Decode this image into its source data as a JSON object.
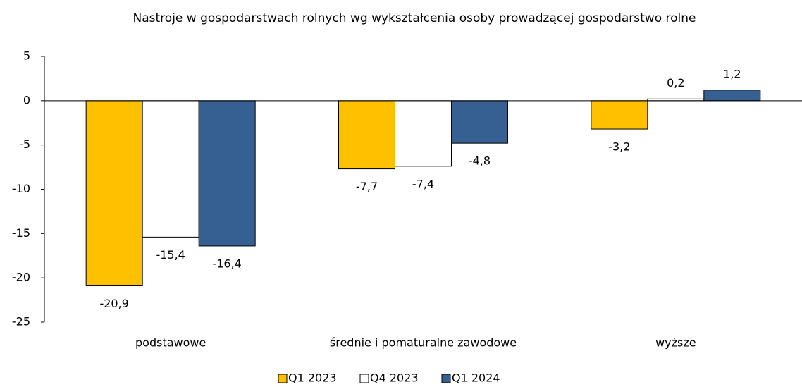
{
  "chart_data": {
    "type": "bar",
    "title": "Nastroje w gospodarstwach rolnych wg wykształcenia osoby prowadzącej gospodarstwo rolne",
    "categories": [
      "podstawowe",
      "średnie i pomaturalne zawodowe",
      "wyższe"
    ],
    "series": [
      {
        "name": "Q1 2023",
        "color": "#ffc000",
        "values": [
          -20.9,
          -7.7,
          -3.2
        ],
        "value_labels": [
          "-20,9",
          "-7,7",
          "-3,2"
        ]
      },
      {
        "name": "Q4 2023",
        "color": "#ffffff",
        "values": [
          -15.4,
          -7.4,
          0.2
        ],
        "value_labels": [
          "-15,4",
          "-7,4",
          "0,2"
        ]
      },
      {
        "name": "Q1 2024",
        "color": "#366092",
        "values": [
          -16.4,
          -4.8,
          1.2
        ],
        "value_labels": [
          "-16,4",
          "-4,8",
          "1,2"
        ]
      }
    ],
    "ylim": [
      -25,
      5
    ],
    "yticks": [
      -25,
      -20,
      -15,
      -10,
      -5,
      0,
      5
    ],
    "legend": "bottom"
  }
}
